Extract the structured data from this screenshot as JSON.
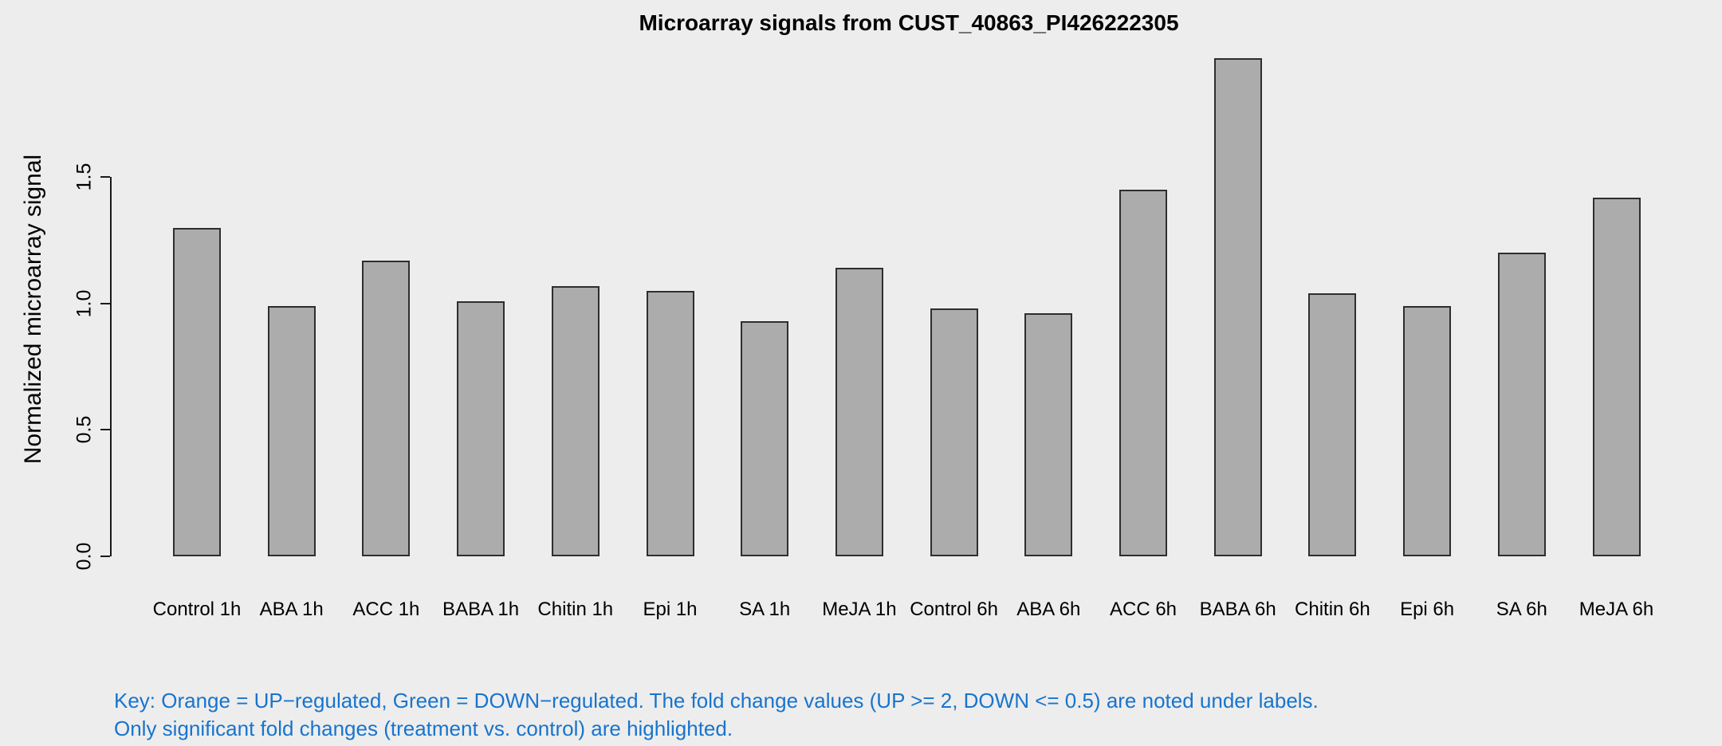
{
  "title": "Microarray signals from CUST_40863_PI426222305",
  "y_axis_label": "Normalized microarray signal",
  "key": {
    "line1": "Key: Orange = UP−regulated, Green = DOWN−regulated. The fold change values (UP >= 2, DOWN <= 0.5) are noted under labels.",
    "line2": "Only significant fold changes (treatment vs. control) are highlighted.",
    "color": "#1874CD"
  },
  "colors": {
    "background": "#EDEDED",
    "bar_fill": "#ACACAC",
    "bar_border": "#2E2E2E",
    "axis": "#1A1A1A",
    "text": "#000000"
  },
  "chart_data": {
    "type": "bar",
    "title": "Microarray signals from CUST_40863_PI426222305",
    "xlabel": "",
    "ylabel": "Normalized microarray signal",
    "categories": [
      "Control 1h",
      "ABA 1h",
      "ACC 1h",
      "BABA 1h",
      "Chitin 1h",
      "Epi 1h",
      "SA 1h",
      "MeJA 1h",
      "Control 6h",
      "ABA 6h",
      "ACC 6h",
      "BABA 6h",
      "Chitin 6h",
      "Epi 6h",
      "SA 6h",
      "MeJA 6h"
    ],
    "values": [
      1.3,
      0.99,
      1.17,
      1.01,
      1.07,
      1.05,
      0.93,
      1.14,
      0.98,
      0.96,
      1.45,
      1.97,
      1.04,
      0.99,
      1.2,
      1.42
    ],
    "yticks": [
      0.0,
      0.5,
      1.0,
      1.5
    ],
    "ytick_labels": [
      "0.0",
      "0.5",
      "1.0",
      "1.5"
    ],
    "ylim": [
      0.0,
      1.97
    ],
    "grid": false,
    "legend_position": "none",
    "bar_color": "#ACACAC"
  }
}
